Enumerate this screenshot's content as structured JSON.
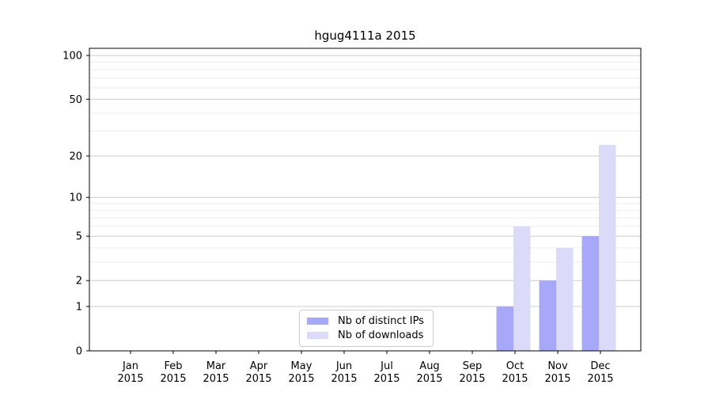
{
  "chart_data": {
    "type": "bar",
    "title": "hgug4111a 2015",
    "categories": [
      "Jan 2015",
      "Feb 2015",
      "Mar 2015",
      "Apr 2015",
      "May 2015",
      "Jun 2015",
      "Jul 2015",
      "Aug 2015",
      "Sep 2015",
      "Oct 2015",
      "Nov 2015",
      "Dec 2015"
    ],
    "series": [
      {
        "name": "Nb of distinct IPs",
        "color": "#a8a8f8",
        "values": [
          0,
          0,
          0,
          0,
          0,
          0,
          0,
          0,
          0,
          1,
          2,
          5
        ]
      },
      {
        "name": "Nb of downloads",
        "color": "#dbdbf9",
        "values": [
          0,
          0,
          0,
          0,
          0,
          0,
          0,
          0,
          0,
          6,
          4,
          24
        ]
      }
    ],
    "xlabel": "",
    "ylabel": "",
    "yscale": "log1p",
    "ylim": [
      0,
      112
    ],
    "yticks": [
      0,
      1,
      2,
      5,
      10,
      20,
      50,
      100
    ],
    "minor_gridlines": [
      3,
      4,
      6,
      7,
      8,
      9,
      30,
      40,
      60,
      70,
      80,
      90
    ],
    "grid": "horizontal",
    "legend_position": "bottom-center",
    "colors": {
      "major_gridline": "#cccccc",
      "minor_gridline": "#ededed",
      "axis": "#000000",
      "text": "#000000"
    }
  }
}
